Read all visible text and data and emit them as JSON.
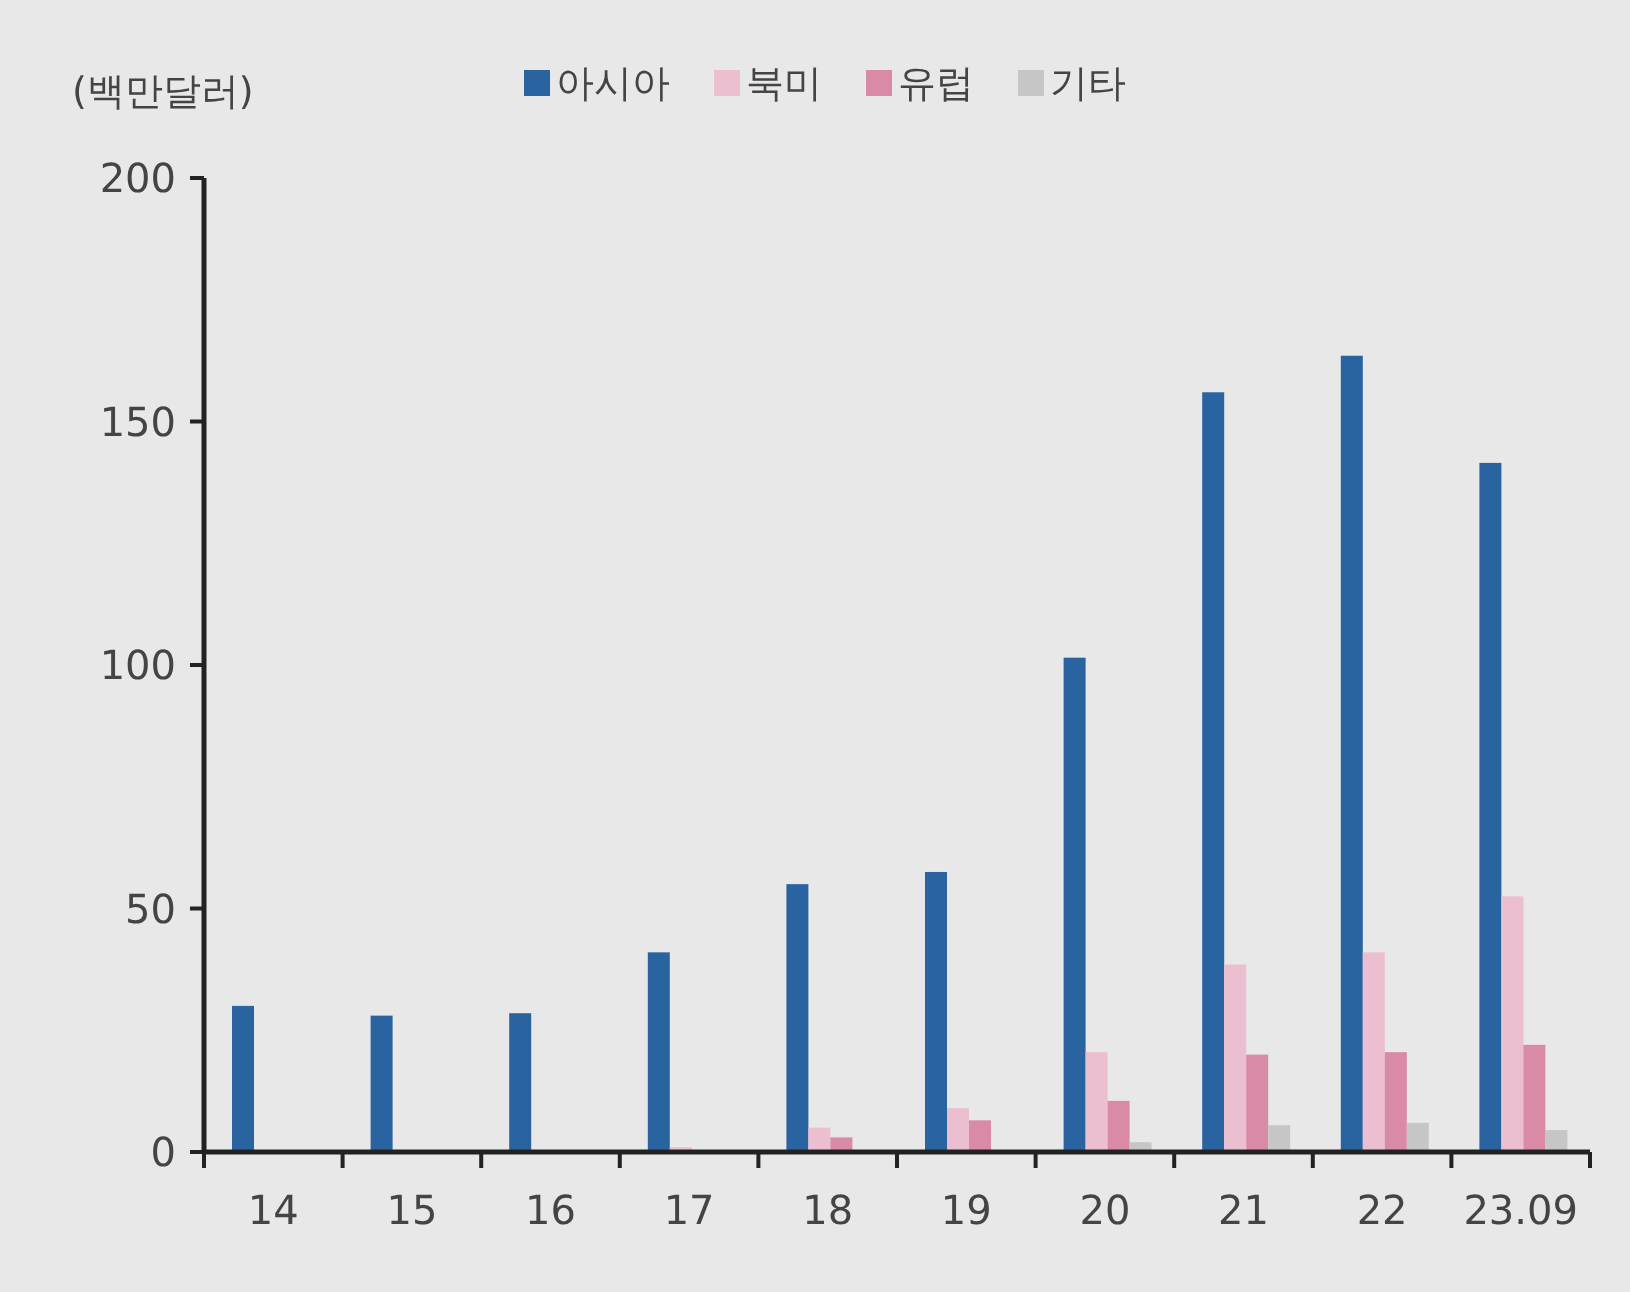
{
  "chart_data": {
    "type": "bar",
    "ylabel": "(백만달러)",
    "categories": [
      "14",
      "15",
      "16",
      "17",
      "18",
      "19",
      "20",
      "21",
      "22",
      "23.09"
    ],
    "series": [
      {
        "name": "아시아",
        "color": "#2a64a0",
        "values": [
          30,
          28,
          28.5,
          41,
          55,
          57.5,
          101.5,
          156,
          163.5,
          141.5
        ]
      },
      {
        "name": "북미",
        "color": "#ecbfd0",
        "values": [
          0,
          0,
          0,
          1,
          5,
          9,
          20.5,
          38.5,
          41,
          52.5
        ]
      },
      {
        "name": "유럽",
        "color": "#d98aa6",
        "values": [
          0,
          0,
          0,
          null,
          3,
          6.5,
          10.5,
          20,
          20.5,
          22
        ]
      },
      {
        "name": "기타",
        "color": "#c6c6c6",
        "values": [
          0,
          0,
          0,
          0,
          0,
          0,
          2,
          5.5,
          6,
          4.5
        ]
      }
    ],
    "ylim": [
      0,
      200
    ],
    "yticks": [
      0,
      50,
      100,
      150,
      200
    ],
    "legend": "top",
    "grid": false
  }
}
